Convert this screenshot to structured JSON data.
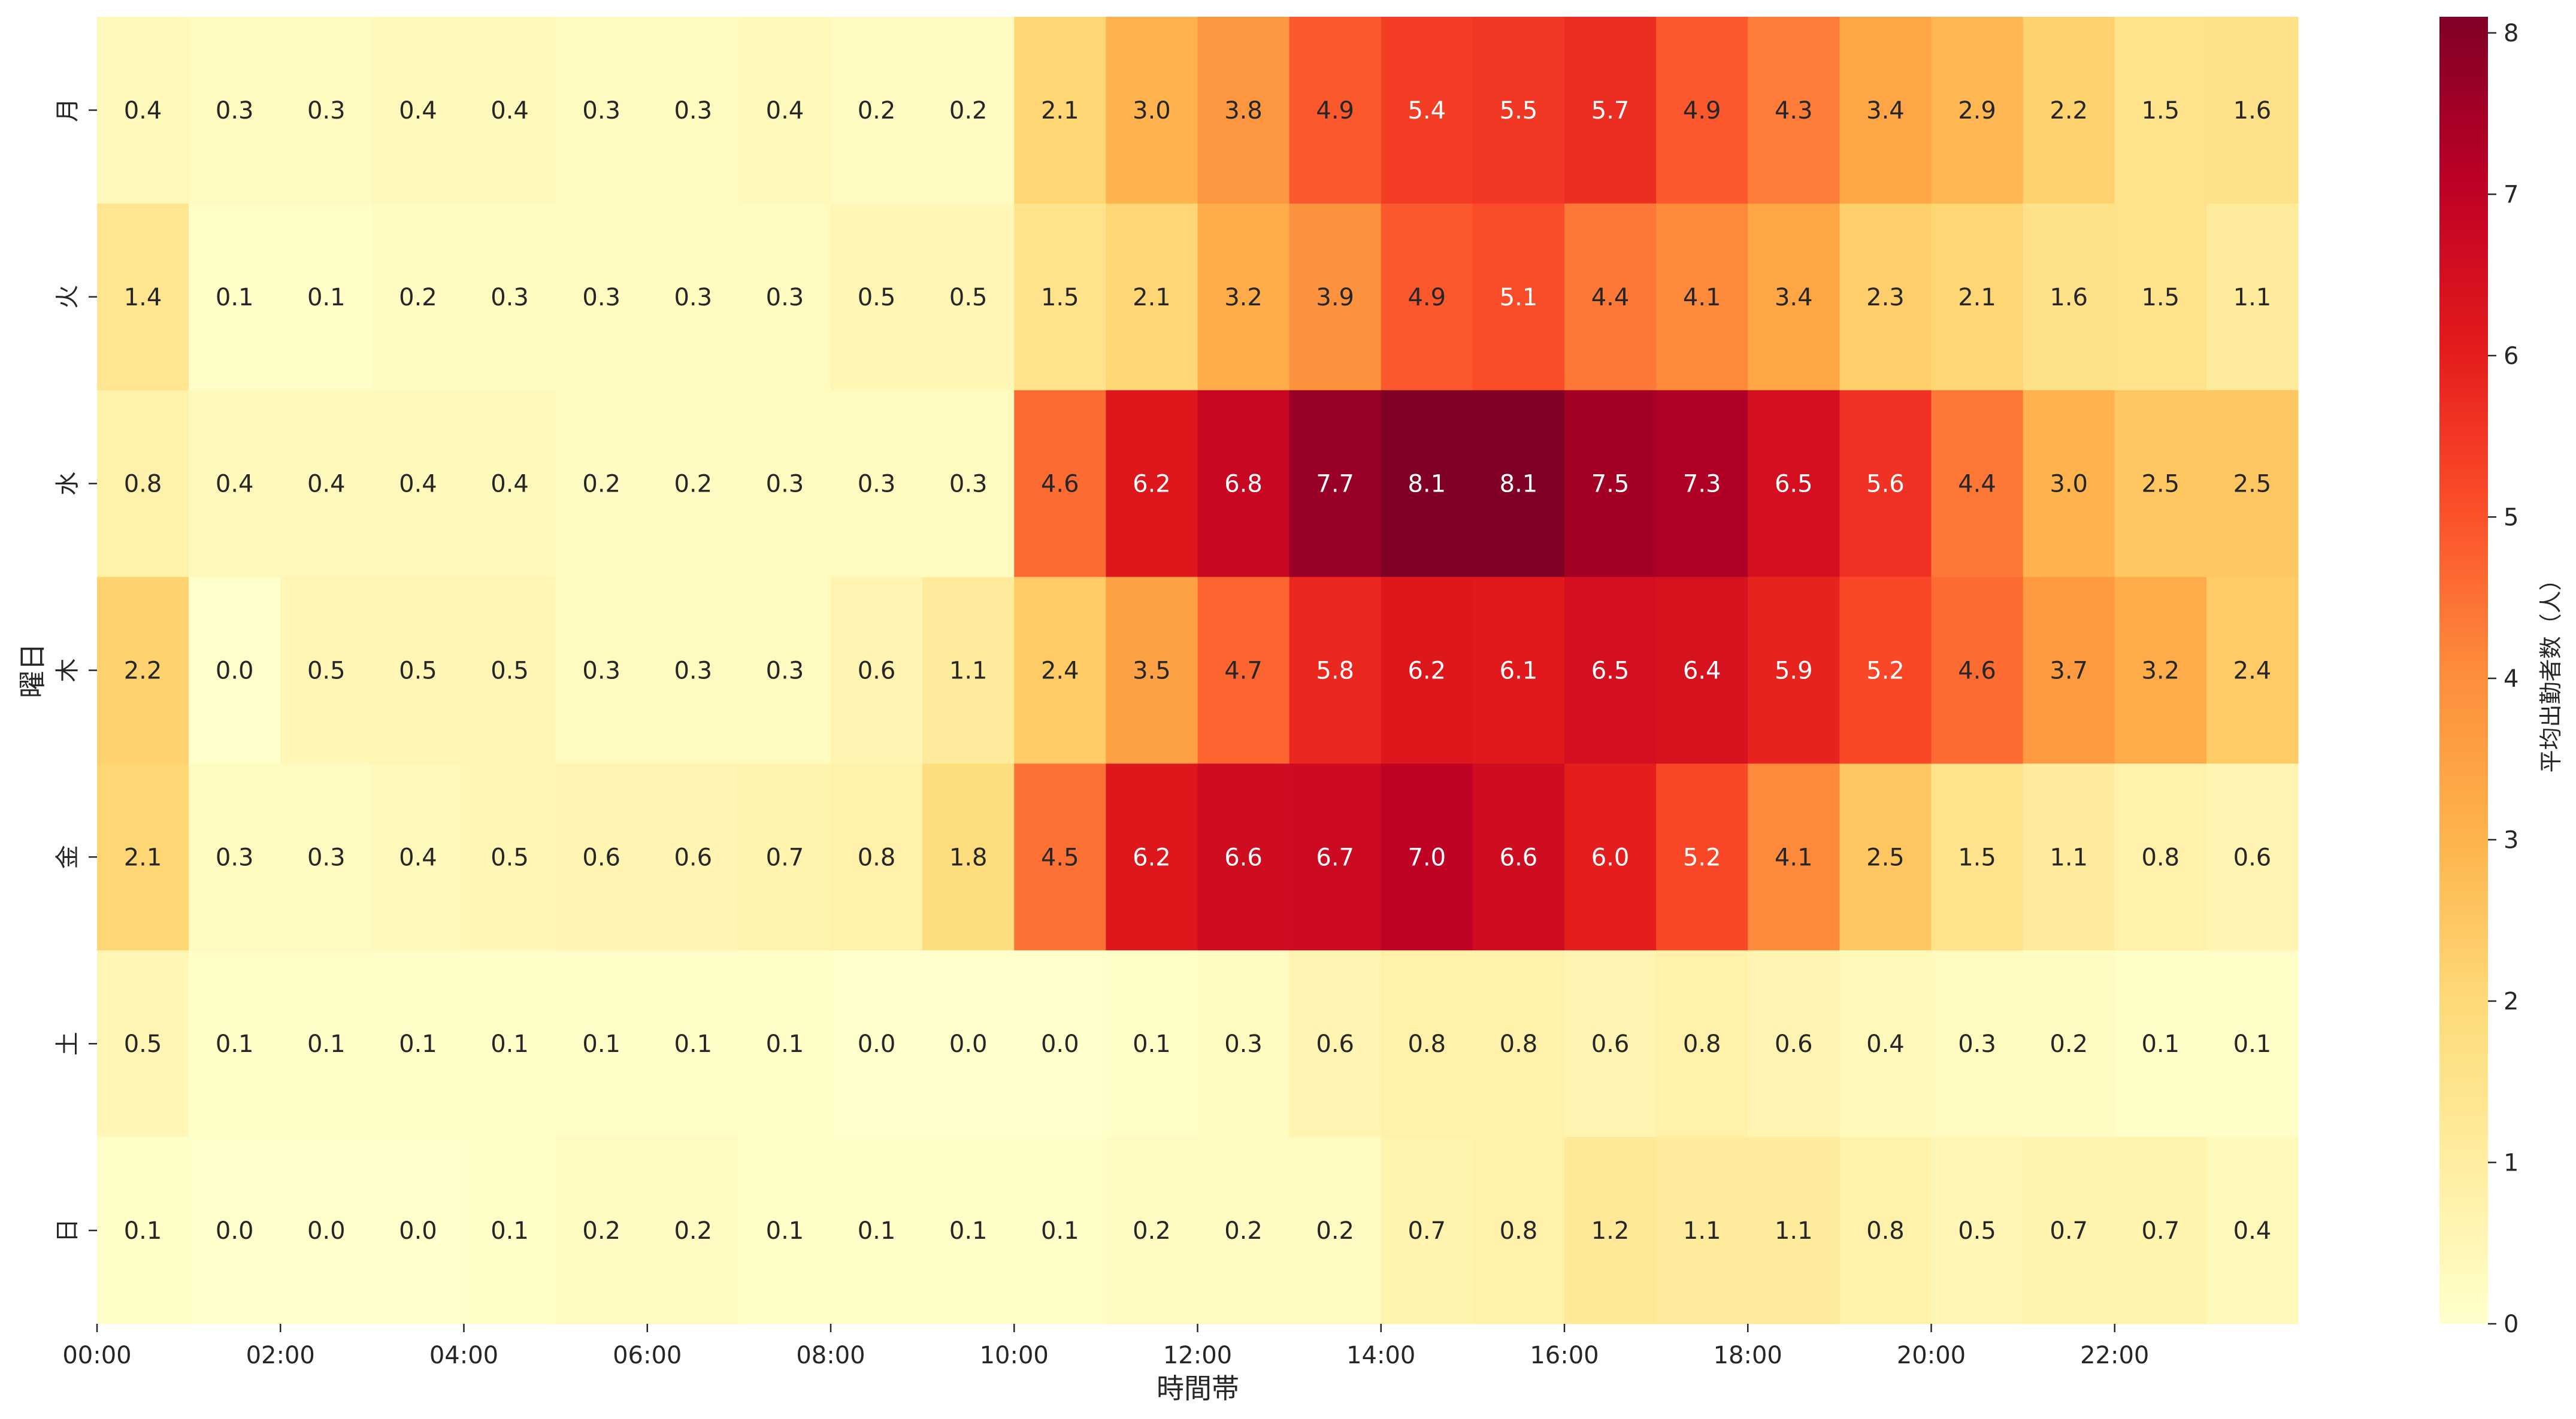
{
  "chart_data": {
    "type": "heatmap",
    "title": "",
    "xlabel": "時間帯",
    "ylabel": "曜日",
    "x_tick_labels": [
      "00:00",
      "02:00",
      "04:00",
      "06:00",
      "08:00",
      "10:00",
      "12:00",
      "14:00",
      "16:00",
      "18:00",
      "20:00",
      "22:00"
    ],
    "y_categories": [
      "月",
      "火",
      "水",
      "木",
      "金",
      "土",
      "日"
    ],
    "hours": [
      0,
      1,
      2,
      3,
      4,
      5,
      6,
      7,
      8,
      9,
      10,
      11,
      12,
      13,
      14,
      15,
      16,
      17,
      18,
      19,
      20,
      21,
      22,
      23
    ],
    "values": [
      [
        0.4,
        0.3,
        0.3,
        0.4,
        0.4,
        0.3,
        0.3,
        0.4,
        0.2,
        0.2,
        2.1,
        3.0,
        3.8,
        4.9,
        5.4,
        5.5,
        5.7,
        4.9,
        4.3,
        3.4,
        2.9,
        2.2,
        1.5,
        1.6
      ],
      [
        1.4,
        0.1,
        0.1,
        0.2,
        0.3,
        0.3,
        0.3,
        0.3,
        0.5,
        0.5,
        1.5,
        2.1,
        3.2,
        3.9,
        4.9,
        5.1,
        4.4,
        4.1,
        3.4,
        2.3,
        2.1,
        1.6,
        1.5,
        1.1
      ],
      [
        0.8,
        0.4,
        0.4,
        0.4,
        0.4,
        0.2,
        0.2,
        0.3,
        0.3,
        0.3,
        4.6,
        6.2,
        6.8,
        7.7,
        8.1,
        8.1,
        7.5,
        7.3,
        6.5,
        5.6,
        4.4,
        3.0,
        2.5,
        2.5
      ],
      [
        2.2,
        0.0,
        0.5,
        0.5,
        0.5,
        0.3,
        0.3,
        0.3,
        0.6,
        1.1,
        2.4,
        3.5,
        4.7,
        5.8,
        6.2,
        6.1,
        6.5,
        6.4,
        5.9,
        5.2,
        4.6,
        3.7,
        3.2,
        2.4
      ],
      [
        2.1,
        0.3,
        0.3,
        0.4,
        0.5,
        0.6,
        0.6,
        0.7,
        0.8,
        1.8,
        4.5,
        6.2,
        6.6,
        6.7,
        7.0,
        6.6,
        6.0,
        5.2,
        4.1,
        2.5,
        1.5,
        1.1,
        0.8,
        0.6
      ],
      [
        0.5,
        0.1,
        0.1,
        0.1,
        0.1,
        0.1,
        0.1,
        0.1,
        0.0,
        0.0,
        0.0,
        0.1,
        0.3,
        0.6,
        0.8,
        0.8,
        0.6,
        0.8,
        0.6,
        0.4,
        0.3,
        0.2,
        0.1,
        0.1
      ],
      [
        0.1,
        0.0,
        0.0,
        0.0,
        0.1,
        0.2,
        0.2,
        0.1,
        0.1,
        0.1,
        0.1,
        0.2,
        0.2,
        0.2,
        0.7,
        0.8,
        1.2,
        1.1,
        1.1,
        0.8,
        0.5,
        0.7,
        0.7,
        0.4
      ]
    ],
    "value_format": "0.0",
    "colormap": "YlOrRd",
    "colormap_stops": [
      "#ffffcc",
      "#ffeda0",
      "#fed976",
      "#feb24c",
      "#fd8d3c",
      "#fc4e2a",
      "#e31a1c",
      "#bd0026",
      "#800026"
    ],
    "colorbar": {
      "label": "平均出勤者数（人）",
      "range": [
        0,
        8.1
      ],
      "ticks": [
        0,
        1,
        2,
        3,
        4,
        5,
        6,
        7,
        8
      ]
    },
    "grid": false,
    "legend": "colorbar-right"
  }
}
